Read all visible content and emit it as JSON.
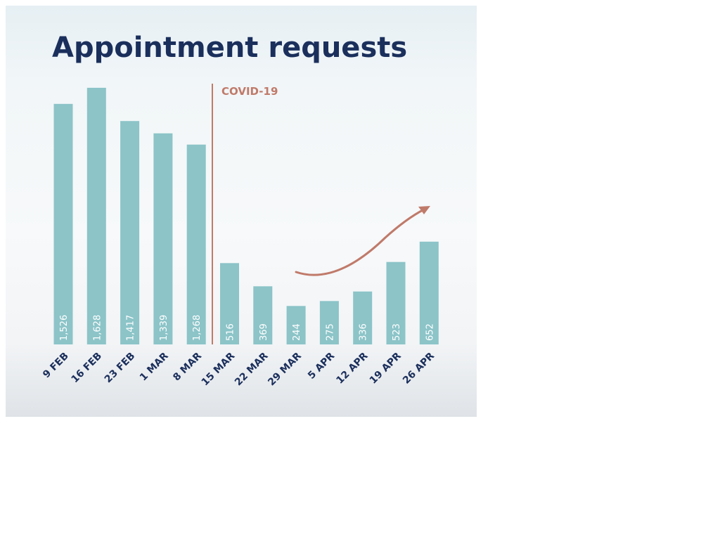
{
  "chart_data": {
    "type": "bar",
    "title": "Appointment requests",
    "categories": [
      "9 FEB",
      "16 FEB",
      "23 FEB",
      "1 MAR",
      "8 MAR",
      "15 MAR",
      "22 MAR",
      "29 MAR",
      "5 APR",
      "12 APR",
      "19 APR",
      "26 APR"
    ],
    "values": [
      1526,
      1628,
      1417,
      1339,
      1268,
      516,
      369,
      244,
      275,
      336,
      523,
      652
    ],
    "value_labels": [
      "1,526",
      "1,628",
      "1,417",
      "1,339",
      "1,268",
      "516",
      "369",
      "244",
      "275",
      "336",
      "523",
      "652"
    ],
    "xlabel": "",
    "ylabel": "",
    "ylim": [
      0,
      1650
    ],
    "grid": false,
    "annotations": [
      {
        "type": "vertical-line",
        "between": [
          "8 MAR",
          "15 MAR"
        ],
        "label": "COVID-19"
      },
      {
        "type": "trend-arrow",
        "from": "29 MAR",
        "to": "26 APR",
        "direction": "up"
      }
    ],
    "colors": {
      "bar": "#8cc4c8",
      "covid": "#c07a6a",
      "title": "#1b2f5c",
      "value_label": "#ffffff"
    }
  }
}
